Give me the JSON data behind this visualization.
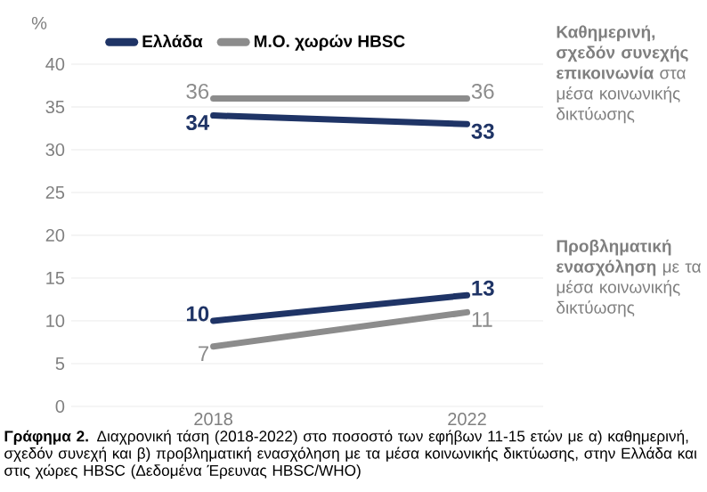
{
  "chart_data": {
    "type": "line",
    "ylabel": "%",
    "categories": [
      "2018",
      "2022"
    ],
    "ylim": [
      0,
      40
    ],
    "yticks": [
      0,
      5,
      10,
      15,
      20,
      25,
      30,
      35,
      40
    ],
    "grid": "y",
    "legend": "top",
    "data_labels": true,
    "marker": "none",
    "line_style": "solid",
    "series": [
      {
        "name": "Ελλάδα",
        "color": "#1f3466",
        "values": [
          34,
          33
        ]
      },
      {
        "name": "Μ.Ο. χωρών HBSC",
        "color": "#8c8c8c",
        "values": [
          36,
          36
        ]
      },
      {
        "color": "#1f3466",
        "values": [
          10,
          13
        ]
      },
      {
        "color": "#8c8c8c",
        "values": [
          7,
          11
        ]
      }
    ],
    "annotations": [
      "**Καθημερινή, σχεδόν συνεχής επικοινωνία** στα μέσα κοινωνικής δικτύωσης",
      "**Προβληματική ενασχόληση** με τα μέσα κοινωνικής δικτύωσης",
      "**Γράφημα 2.** Διαχρονική τάση (2018-2022) στο ποσοστό των εφήβων 11-15 ετών με α) καθημερινή, σχεδόν συνεχή και β) προβληματική ενασχόληση με τα μέσα κοινωνικής δικτύωσης, στην Ελλάδα και στις χώρες HBSC (Δεδομένα Έρευνας HBSC/WHO)"
    ]
  }
}
